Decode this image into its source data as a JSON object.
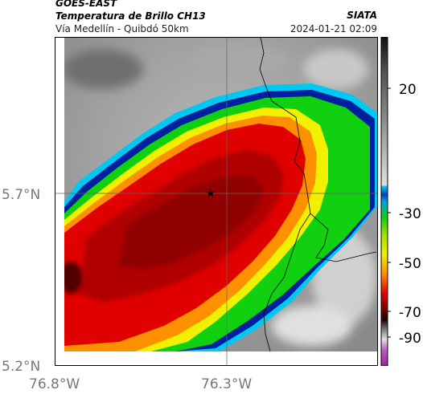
{
  "header": {
    "satellite": "GOES-EAST",
    "product": "Temperatura de Brillo CH13",
    "route": "Vía Medellín - Quibdó 50km",
    "brand": "SIATA",
    "datetime": "2024-01-21 02:09"
  },
  "map": {
    "lat_ticks": [
      "5.7°N",
      "5.2°N"
    ],
    "lon_ticks": [
      "76.8°W",
      "76.3°W"
    ],
    "marker": "star"
  },
  "colorbar": {
    "ticks": [
      "20",
      "-30",
      "-50",
      "-70",
      "-90"
    ],
    "colors": {
      "warm": "#888888",
      "cyan": "#00c8f0",
      "blue": "#0020a0",
      "green": "#10d010",
      "yellow": "#f0f000",
      "orange": "#ff9000",
      "red": "#e00000",
      "darkred": "#700000",
      "magenta": "#c040c0"
    }
  }
}
